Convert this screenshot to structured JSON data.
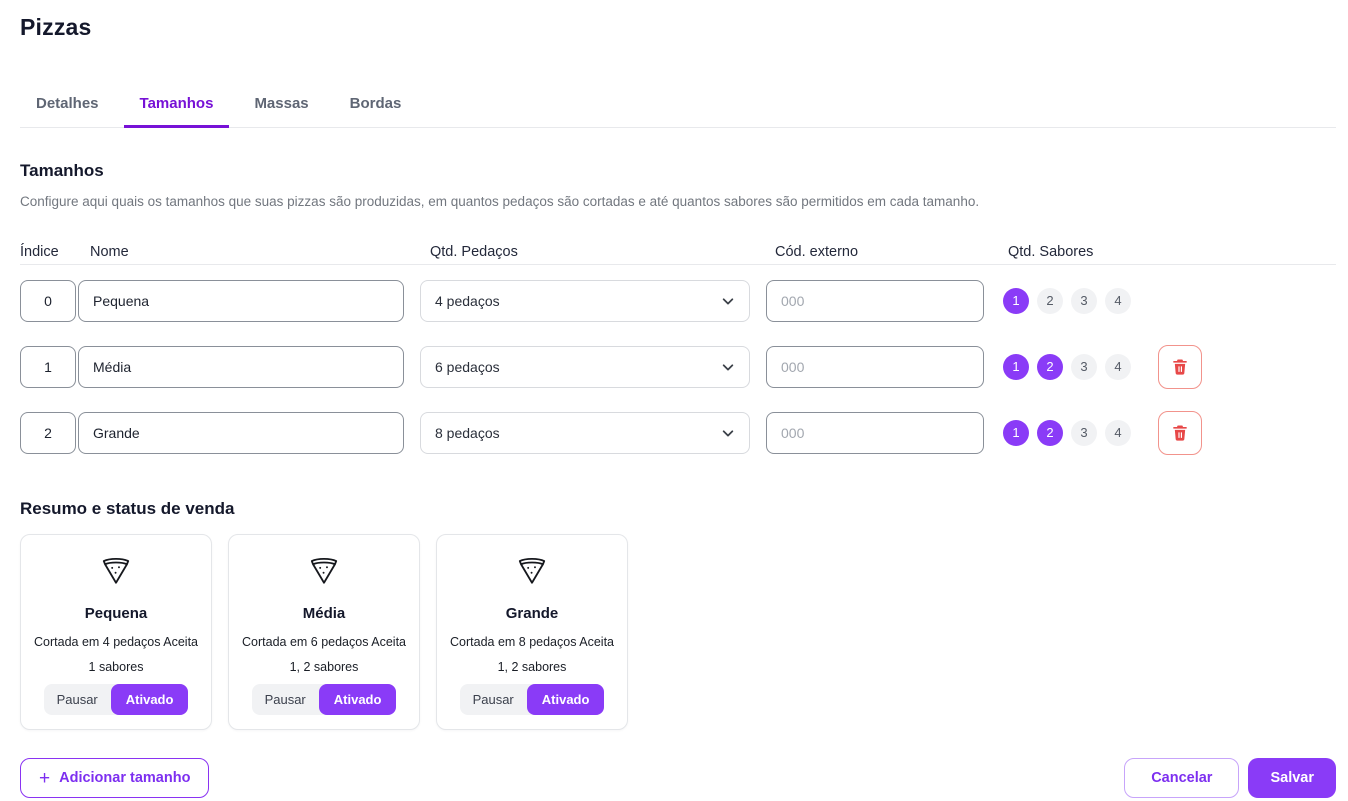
{
  "page": {
    "title": "Pizzas"
  },
  "tabs": [
    {
      "label": "Detalhes",
      "active": false
    },
    {
      "label": "Tamanhos",
      "active": true
    },
    {
      "label": "Massas",
      "active": false
    },
    {
      "label": "Bordas",
      "active": false
    }
  ],
  "section": {
    "title": "Tamanhos",
    "description": "Configure aqui quais os tamanhos que suas pizzas são produzidas, em quantos pedaços são cortadas e até quantos sabores são permitidos em cada tamanho."
  },
  "table": {
    "headers": {
      "indice": "Índice",
      "nome": "Nome",
      "pedacos": "Qtd. Pedaços",
      "cod_externo": "Cód. externo",
      "sabores": "Qtd. Sabores"
    },
    "rows": [
      {
        "indice": "0",
        "nome": "Pequena",
        "pedacos_selected": "4 pedaços",
        "cod_placeholder": "000",
        "sabores_options": [
          "1",
          "2",
          "3",
          "4"
        ],
        "sabores_selected": [
          "1"
        ],
        "deletable": false
      },
      {
        "indice": "1",
        "nome": "Média",
        "pedacos_selected": "6 pedaços",
        "cod_placeholder": "000",
        "sabores_options": [
          "1",
          "2",
          "3",
          "4"
        ],
        "sabores_selected": [
          "1",
          "2"
        ],
        "deletable": true
      },
      {
        "indice": "2",
        "nome": "Grande",
        "pedacos_selected": "8 pedaços",
        "cod_placeholder": "000",
        "sabores_options": [
          "1",
          "2",
          "3",
          "4"
        ],
        "sabores_selected": [
          "1",
          "2"
        ],
        "deletable": true
      }
    ]
  },
  "summary": {
    "title": "Resumo e status de venda",
    "cards": [
      {
        "name": "Pequena",
        "description_line1": "Cortada em 4 pedaços Aceita",
        "description_line2": "1 sabores",
        "pause_label": "Pausar",
        "active_label": "Ativado",
        "status": "ativado"
      },
      {
        "name": "Média",
        "description_line1": "Cortada em 6 pedaços Aceita",
        "description_line2": "1, 2 sabores",
        "pause_label": "Pausar",
        "active_label": "Ativado",
        "status": "ativado"
      },
      {
        "name": "Grande",
        "description_line1": "Cortada em 8 pedaços Aceita",
        "description_line2": "1, 2 sabores",
        "pause_label": "Pausar",
        "active_label": "Ativado",
        "status": "ativado"
      }
    ]
  },
  "footer": {
    "add_button_label": "Adicionar tamanho",
    "cancel_label": "Cancelar",
    "save_label": "Salvar"
  },
  "colors": {
    "accent": "#8a3bf7",
    "tab_accent": "#7711d6",
    "danger": "#e74848",
    "pill_unselected_bg": "#f1f2f4",
    "input_border": "#8a9099",
    "select_border": "#d8dade"
  }
}
